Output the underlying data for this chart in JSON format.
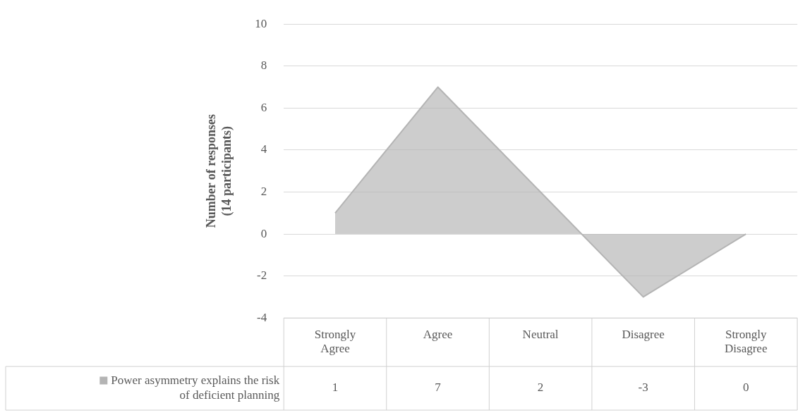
{
  "chart_data": {
    "type": "area",
    "ylabel": "Number of responses (14 participants)",
    "categories": [
      "Strongly Agree",
      "Agree",
      "Neutral",
      "Disagree",
      "Strongly Disagree"
    ],
    "series": [
      {
        "name": "Power asymmetry explains the risk of deficient planning",
        "color": "#b4b4b4",
        "values": [
          1,
          7,
          2,
          -3,
          0
        ]
      }
    ],
    "ylim": [
      -4,
      10
    ],
    "yticks": [
      -4,
      -2,
      0,
      2,
      4,
      6,
      8,
      10
    ],
    "grid": "y",
    "legend": "bottom left",
    "data_labels": true
  }
}
